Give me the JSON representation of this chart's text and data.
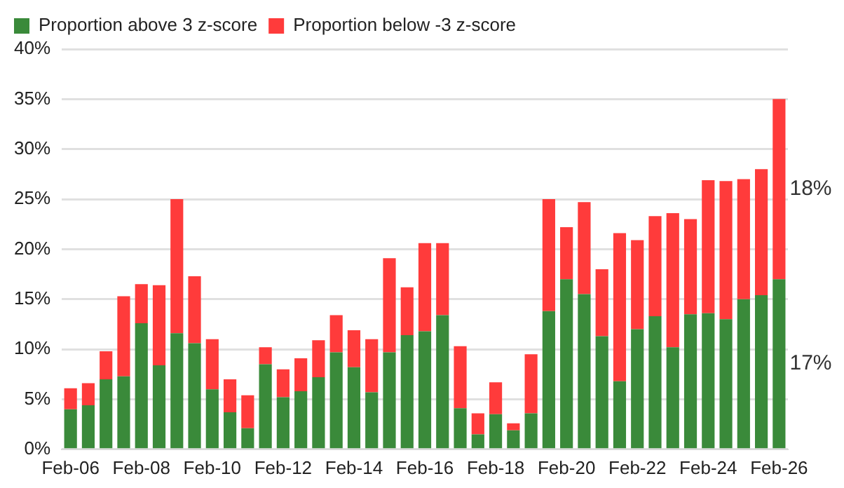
{
  "chart_data": {
    "type": "bar",
    "stacked": true,
    "categories": [
      "Feb-06",
      null,
      null,
      null,
      "Feb-08",
      null,
      null,
      null,
      "Feb-10",
      null,
      null,
      null,
      "Feb-12",
      null,
      null,
      null,
      "Feb-14",
      null,
      null,
      null,
      "Feb-16",
      null,
      null,
      null,
      "Feb-18",
      null,
      null,
      null,
      "Feb-20",
      null,
      null,
      null,
      "Feb-22",
      null,
      null,
      null,
      "Feb-24",
      null,
      null,
      null,
      "Feb-26"
    ],
    "series": [
      {
        "name": "Proportion above 3 z-score",
        "color": "#3a8a3a",
        "values": [
          4.0,
          4.4,
          7.0,
          7.3,
          12.6,
          8.4,
          11.6,
          10.6,
          6.0,
          3.7,
          2.1,
          8.5,
          5.2,
          5.8,
          7.2,
          9.7,
          8.2,
          5.7,
          9.7,
          11.4,
          11.8,
          13.4,
          4.1,
          1.5,
          3.5,
          1.9,
          3.6,
          13.8,
          17.0,
          15.5,
          11.3,
          6.8,
          12.0,
          13.3,
          10.2,
          13.5,
          13.6,
          13.0,
          15.0,
          15.4,
          17.0
        ]
      },
      {
        "name": "Proportion below -3 z-score",
        "color": "#ff3b3b",
        "values": [
          2.1,
          2.2,
          2.8,
          8.0,
          3.9,
          8.0,
          13.4,
          6.7,
          5.0,
          3.3,
          3.3,
          1.7,
          2.8,
          3.3,
          3.7,
          3.7,
          3.7,
          5.3,
          9.4,
          4.8,
          8.8,
          7.2,
          6.2,
          2.1,
          3.2,
          0.7,
          5.9,
          11.2,
          5.2,
          9.2,
          6.7,
          14.8,
          8.9,
          10.0,
          13.4,
          9.5,
          13.3,
          13.8,
          12.0,
          12.6,
          18.0
        ]
      }
    ],
    "annotations": [
      "18%",
      "17%"
    ],
    "ylim": [
      0,
      40
    ],
    "yticks": [
      {
        "value": 0,
        "label": "0%"
      },
      {
        "value": 5,
        "label": "5%"
      },
      {
        "value": 10,
        "label": "10%"
      },
      {
        "value": 15,
        "label": "15%"
      },
      {
        "value": 20,
        "label": "20%"
      },
      {
        "value": 25,
        "label": "25%"
      },
      {
        "value": 30,
        "label": "30%"
      },
      {
        "value": 35,
        "label": "35%"
      },
      {
        "value": 40,
        "label": "40%"
      }
    ],
    "grid": "y",
    "legend": "top left"
  }
}
